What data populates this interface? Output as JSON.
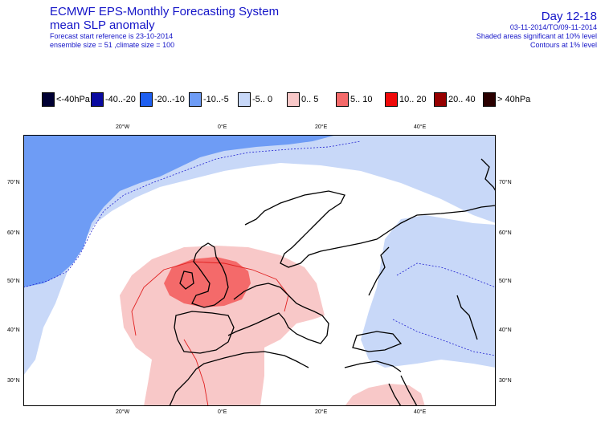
{
  "header": {
    "title_line1": "ECMWF EPS-Monthly Forecasting System",
    "title_line2": "mean SLP anomaly",
    "forecast_ref": "Forecast start reference is 23-10-2014",
    "ensemble": "ensemble size = 51 ,climate size = 100",
    "day": "Day 12-18",
    "period": "03-11-2014/TO/09-11-2014",
    "shaded_note": "Shaded areas significant at 10% level",
    "contour_note": "Contours at 1% level"
  },
  "legend": [
    {
      "label": "<-40hPa",
      "color": "#000033"
    },
    {
      "label": "-40..-20",
      "color": "#0a0aa0"
    },
    {
      "label": "-20..-10",
      "color": "#1e5ff0"
    },
    {
      "label": "-10..-5",
      "color": "#6e9cf5"
    },
    {
      "label": "-5..  0",
      "color": "#c8d8f8"
    },
    {
      "label": "0..  5",
      "color": "#f8c8c8"
    },
    {
      "label": "5..  10",
      "color": "#f46a6a"
    },
    {
      "label": "10..  20",
      "color": "#f00a0a"
    },
    {
      "label": "20..  40",
      "color": "#960000"
    },
    {
      "label": ">  40hPa",
      "color": "#2a0000"
    }
  ],
  "axes": {
    "top_lon": [
      "20°W",
      "0°E",
      "20°E",
      "40°E"
    ],
    "bottom_lon": [
      "20°W",
      "0°E",
      "20°E",
      "40°E"
    ],
    "lat": [
      "70°N",
      "60°N",
      "50°N",
      "40°N",
      "30°N"
    ]
  }
}
